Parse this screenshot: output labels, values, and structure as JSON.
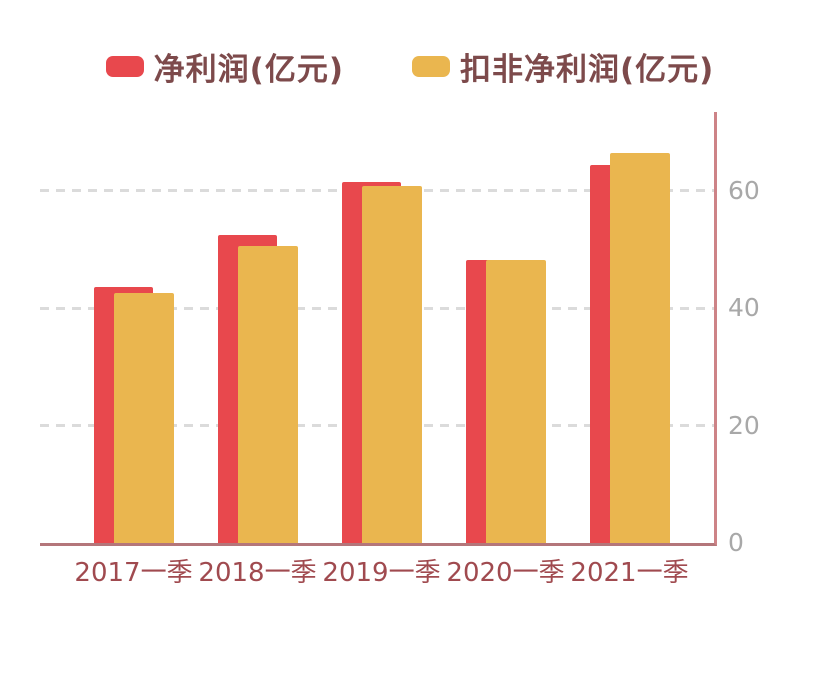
{
  "legend": {
    "items": [
      {
        "label": "净利润(亿元)",
        "color": "#E8484D"
      },
      {
        "label": "扣非净利润(亿元)",
        "color": "#EAB64F"
      }
    ]
  },
  "chart_data": {
    "type": "bar",
    "bar_style": "overlapping",
    "title": "",
    "xlabel": "",
    "ylabel": "",
    "categories": [
      "2017一季",
      "2018一季",
      "2019一季",
      "2020一季",
      "2021一季"
    ],
    "series": [
      {
        "name": "净利润(亿元)",
        "color": "#E8484D",
        "values": [
          43.6,
          52.4,
          61.4,
          48.2,
          64.3
        ]
      },
      {
        "name": "扣非净利润(亿元)",
        "color": "#EAB64F",
        "values": [
          42.5,
          50.5,
          60.8,
          48.2,
          66.5
        ]
      }
    ],
    "ylim": [
      0,
      73.4
    ],
    "yticks": [
      0,
      20,
      40,
      60
    ],
    "y_axis_side": "right",
    "grid": "horizontal-dashed",
    "legend_position": "top"
  },
  "colors": {
    "axis_vertical": "#CD8387",
    "axis_baseline": "#B4767A",
    "gridline": "#DBDBDB",
    "x_label_text": "#A04A4F",
    "y_tick_text": "#A8A8A8",
    "legend_text": "#7D4A4B",
    "background": "#FFFFFF"
  }
}
